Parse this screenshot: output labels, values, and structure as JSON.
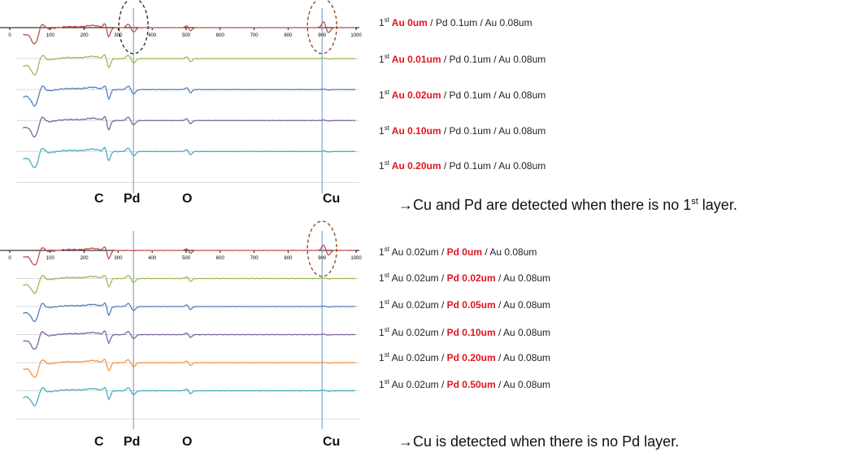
{
  "chart_data": [
    {
      "type": "line",
      "title": "",
      "xlabel": "",
      "ylabel": "",
      "ticks": [
        "0",
        "100",
        "200",
        "300",
        "400",
        "500",
        "600",
        "700",
        "800",
        "900",
        "1000"
      ],
      "xlim": [
        0,
        1000
      ],
      "element_labels": [
        "C",
        "Pd",
        "O",
        "Cu"
      ],
      "reference_lines_x": [
        345,
        900
      ],
      "highlight_circles": [
        {
          "x": 345,
          "color": "#222222",
          "style": "dashed"
        },
        {
          "x": 900,
          "color": "#8b4513",
          "style": "dashed"
        }
      ],
      "series": [
        {
          "label_parts": [
            {
              "t": "1",
              "sup": "st"
            },
            {
              "t": " Au 0um",
              "red": true
            },
            {
              "t": " / Pd 0.1um / Au 0.08um"
            }
          ],
          "color": "#c0504d"
        },
        {
          "label_parts": [
            {
              "t": "1",
              "sup": "st"
            },
            {
              "t": " Au 0.01um",
              "red": true
            },
            {
              "t": " / Pd 0.1um / Au 0.08um"
            }
          ],
          "color": "#9bbb59"
        },
        {
          "label_parts": [
            {
              "t": "1",
              "sup": "st"
            },
            {
              "t": " Au 0.02um",
              "red": true
            },
            {
              "t": " / Pd 0.1um / Au 0.08um"
            }
          ],
          "color": "#4f81bd"
        },
        {
          "label_parts": [
            {
              "t": "1",
              "sup": "st"
            },
            {
              "t": " Au 0.10um",
              "red": true
            },
            {
              "t": " / Pd 0.1um / Au 0.08um"
            }
          ],
          "color": "#8064a2"
        },
        {
          "label_parts": [
            {
              "t": "1",
              "sup": "st"
            },
            {
              "t": " Au 0.20um",
              "red": true
            },
            {
              "t": " / Pd 0.1um / Au 0.08um"
            }
          ],
          "color": "#4bacc6"
        }
      ],
      "note_parts": [
        {
          "t": "→Cu and Pd are detected when there is no 1"
        },
        {
          "t": "st",
          "sup": true
        },
        {
          "t": " layer."
        }
      ]
    },
    {
      "type": "line",
      "title": "",
      "xlabel": "",
      "ylabel": "",
      "ticks": [
        "0",
        "100",
        "200",
        "300",
        "400",
        "500",
        "600",
        "700",
        "800",
        "900",
        "1000"
      ],
      "xlim": [
        0,
        1000
      ],
      "element_labels": [
        "C",
        "Pd",
        "O",
        "Cu"
      ],
      "reference_lines_x": [
        345,
        900
      ],
      "highlight_circles": [
        {
          "x": 900,
          "color": "#8b4513",
          "style": "dashed"
        }
      ],
      "series": [
        {
          "label_parts": [
            {
              "t": "1",
              "sup": "st"
            },
            {
              "t": " Au 0.02um / "
            },
            {
              "t": "Pd 0um",
              "red": true
            },
            {
              "t": " / Au 0.08um"
            }
          ],
          "color": "#c0504d"
        },
        {
          "label_parts": [
            {
              "t": "1",
              "sup": "st"
            },
            {
              "t": " Au 0.02um / "
            },
            {
              "t": "Pd 0.02um",
              "red": true
            },
            {
              "t": " / Au 0.08um"
            }
          ],
          "color": "#9bbb59"
        },
        {
          "label_parts": [
            {
              "t": "1",
              "sup": "st"
            },
            {
              "t": " Au 0.02um / "
            },
            {
              "t": "Pd 0.05um",
              "red": true
            },
            {
              "t": " / Au 0.08um"
            }
          ],
          "color": "#4f81bd"
        },
        {
          "label_parts": [
            {
              "t": "1",
              "sup": "st"
            },
            {
              "t": " Au 0.02um / "
            },
            {
              "t": "Pd 0.10um",
              "red": true
            },
            {
              "t": " / Au 0.08um"
            }
          ],
          "color": "#8064a2"
        },
        {
          "label_parts": [
            {
              "t": "1",
              "sup": "st"
            },
            {
              "t": " Au 0.02um / "
            },
            {
              "t": "Pd 0.20um",
              "red": true
            },
            {
              "t": " / Au 0.08um"
            }
          ],
          "color": "#f79646"
        },
        {
          "label_parts": [
            {
              "t": "1",
              "sup": "st"
            },
            {
              "t": " Au 0.02um / "
            },
            {
              "t": "Pd 0.50um",
              "red": true
            },
            {
              "t": " / Au 0.08um"
            }
          ],
          "color": "#4bacc6"
        }
      ],
      "note_parts": [
        {
          "t": "→Cu is detected when there is no Pd layer."
        }
      ]
    }
  ]
}
